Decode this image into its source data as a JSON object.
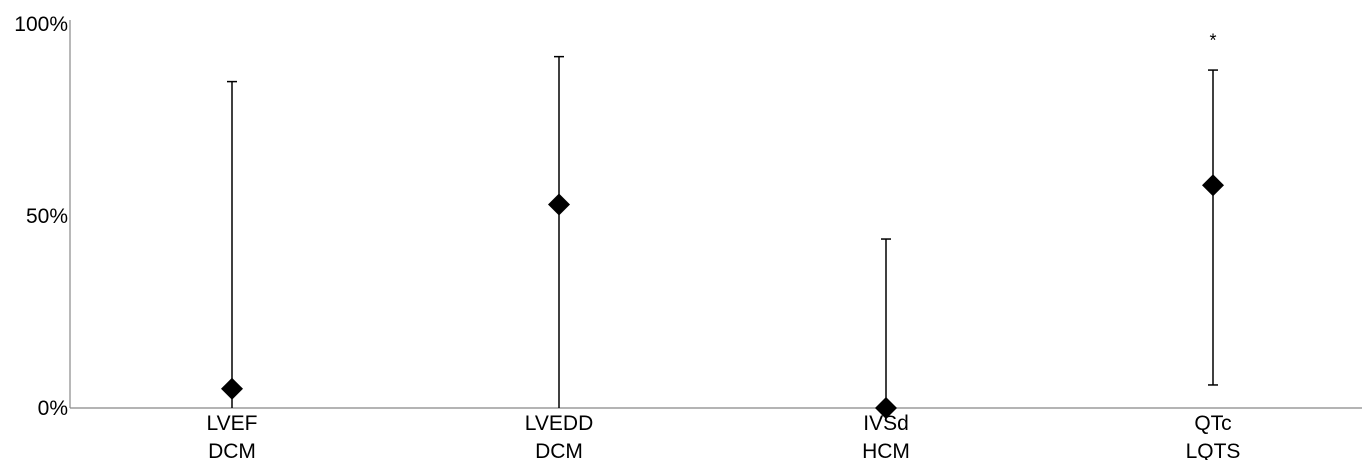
{
  "chart_data": {
    "type": "scatter",
    "categories": [
      {
        "line1": "LVEF",
        "line2": "DCM"
      },
      {
        "line1": "LVEDD",
        "line2": "DCM"
      },
      {
        "line1": "IVSd",
        "line2": "HCM"
      },
      {
        "line1": "QTc",
        "line2": "LQTS"
      }
    ],
    "values": [
      5,
      53,
      0,
      58
    ],
    "error_low": [
      0,
      0,
      0,
      6
    ],
    "error_high": [
      85,
      91.5,
      44,
      88
    ],
    "annotations": [
      {
        "category_index": 3,
        "text": "*",
        "y": 97
      }
    ],
    "yticks": [
      {
        "value": 0,
        "label": "0%"
      },
      {
        "value": 50,
        "label": "50%"
      },
      {
        "value": 100,
        "label": "100%"
      }
    ],
    "ylim": [
      0,
      100
    ],
    "grid": false,
    "marker": "diamond",
    "colors": {
      "axis": "#888888",
      "marker": "#000000",
      "error_bar": "#000000"
    }
  }
}
